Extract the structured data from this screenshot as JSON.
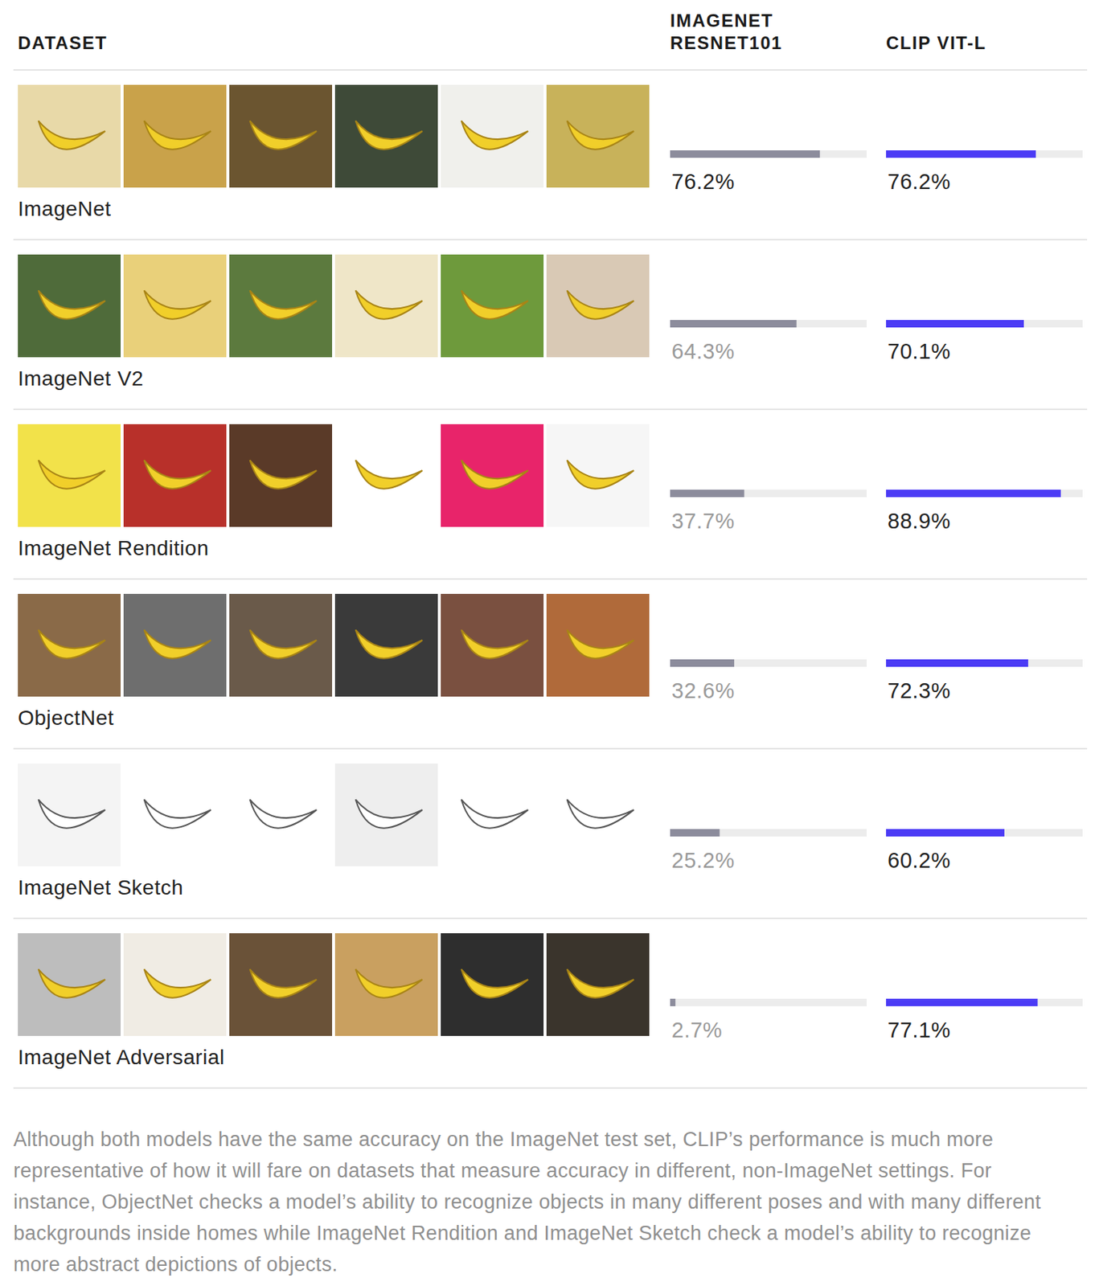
{
  "chart_data": {
    "type": "bar",
    "orientation": "horizontal",
    "ylabel": "DATASET",
    "categories": [
      "ImageNet",
      "ImageNet V2",
      "ImageNet Rendition",
      "ObjectNet",
      "ImageNet Sketch",
      "ImageNet Adversarial"
    ],
    "series": [
      {
        "name": "IMAGENET RESNET101",
        "color": "#8c8c9c",
        "values": [
          76.2,
          64.3,
          37.7,
          32.6,
          25.2,
          2.7
        ],
        "value_labels": [
          "76.2%",
          "64.3%",
          "37.7%",
          "32.6%",
          "25.2%",
          "2.7%"
        ]
      },
      {
        "name": "CLIP VIT-L",
        "color": "#4b3bf5",
        "values": [
          76.2,
          70.1,
          88.9,
          72.3,
          60.2,
          77.1
        ],
        "value_labels": [
          "76.2%",
          "70.1%",
          "88.9%",
          "72.3%",
          "60.2%",
          "77.1%"
        ]
      }
    ],
    "xlim": [
      0,
      100
    ],
    "tick_labels": false,
    "data_labels": true,
    "caption": "Although both models have the same accuracy on the ImageNet test set, CLIP’s performance is much more representative of how it will fare on datasets that measure accuracy in different, non-ImageNet settings. For instance, ObjectNet checks a model’s ability to recognize objects in many different poses and with many different backgrounds inside homes while ImageNet Rendition and ImageNet Sketch check a model’s ability to recognize more abstract depictions of objects."
  }
}
